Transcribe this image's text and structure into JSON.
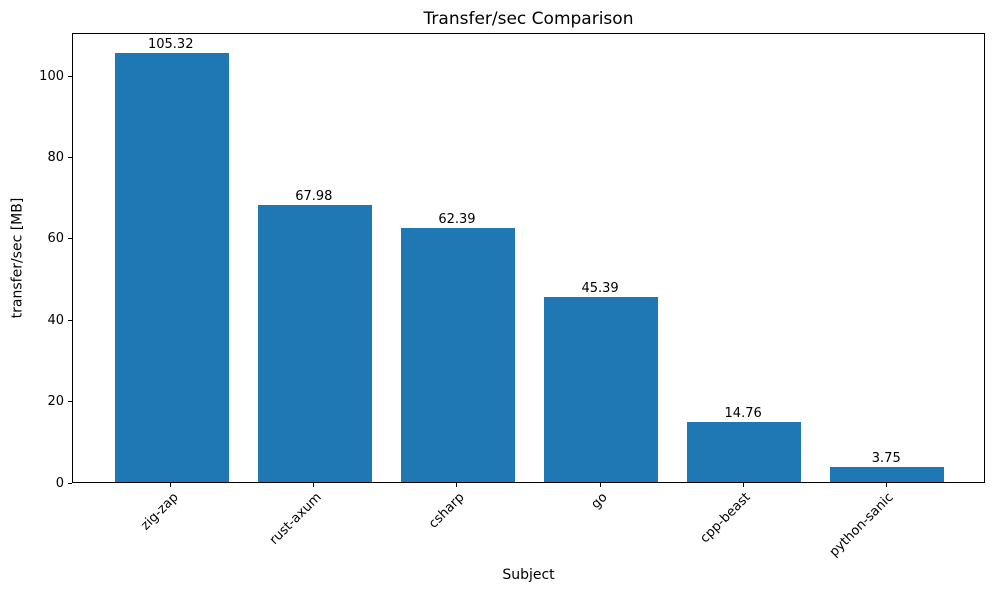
{
  "chart_data": {
    "type": "bar",
    "title": "Transfer/sec Comparison",
    "xlabel": "Subject",
    "ylabel": "transfer/sec [MB]",
    "categories": [
      "zig-zap",
      "rust-axum",
      "csharp",
      "go",
      "cpp-beast",
      "python-sanic"
    ],
    "values": [
      105.32,
      67.98,
      62.39,
      45.39,
      14.76,
      3.75
    ],
    "bar_labels": [
      "105.32",
      "67.98",
      "62.39",
      "45.39",
      "14.76",
      "3.75"
    ],
    "bar_color": "#1f77b4",
    "ylim": [
      0,
      110.6
    ],
    "yticks": [
      0,
      20,
      40,
      60,
      80,
      100
    ],
    "x_tick_rotation_deg": 45,
    "grid": false
  }
}
